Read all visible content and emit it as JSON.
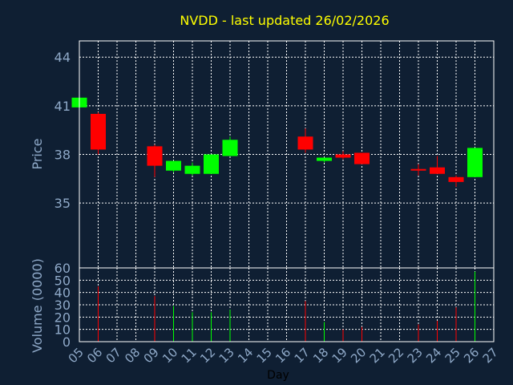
{
  "colors": {
    "background": "#0f1f33",
    "title": "#ffff00",
    "axis_text": "#8fa9c8",
    "grid": "#ffffff",
    "up": "#00ff00",
    "down": "#ff0000"
  },
  "chart_data": [
    {
      "type": "candlestick",
      "title": "NVDD - last updated 26/02/2026",
      "xlabel": "",
      "ylabel": "Price",
      "ylim": [
        31,
        45
      ],
      "yticks": [
        "35",
        "38",
        "41",
        "44"
      ],
      "grid": true,
      "categories": [
        "05",
        "06",
        "07",
        "08",
        "09",
        "10",
        "11",
        "12",
        "13",
        "14",
        "15",
        "16",
        "17",
        "18",
        "19",
        "20",
        "21",
        "22",
        "23",
        "24",
        "25",
        "26",
        "27"
      ],
      "candles": [
        {
          "x": "05",
          "open": 40.9,
          "high": 41.5,
          "low": 40.9,
          "close": 41.5
        },
        {
          "x": "06",
          "open": 40.5,
          "high": 40.6,
          "low": 38.0,
          "close": 38.3
        },
        {
          "x": "09",
          "open": 38.5,
          "high": 38.6,
          "low": 36.6,
          "close": 37.3
        },
        {
          "x": "10",
          "open": 37.0,
          "high": 37.6,
          "low": 36.9,
          "close": 37.6
        },
        {
          "x": "11",
          "open": 36.8,
          "high": 37.5,
          "low": 36.7,
          "close": 37.3
        },
        {
          "x": "12",
          "open": 36.8,
          "high": 38.0,
          "low": 36.8,
          "close": 38.0
        },
        {
          "x": "13",
          "open": 37.9,
          "high": 39.1,
          "low": 37.9,
          "close": 38.9
        },
        {
          "x": "17",
          "open": 39.1,
          "high": 39.6,
          "low": 38.1,
          "close": 38.3
        },
        {
          "x": "18",
          "open": 37.6,
          "high": 37.8,
          "low": 37.5,
          "close": 37.8
        },
        {
          "x": "19",
          "open": 38.0,
          "high": 38.2,
          "low": 37.7,
          "close": 37.8
        },
        {
          "x": "20",
          "open": 38.1,
          "high": 38.1,
          "low": 37.4,
          "close": 37.4
        },
        {
          "x": "23",
          "open": 37.1,
          "high": 37.4,
          "low": 36.7,
          "close": 37.0
        },
        {
          "x": "24",
          "open": 37.2,
          "high": 37.9,
          "low": 36.8,
          "close": 36.8
        },
        {
          "x": "25",
          "open": 36.6,
          "high": 36.7,
          "low": 36.0,
          "close": 36.3
        },
        {
          "x": "26",
          "open": 36.6,
          "high": 38.4,
          "low": 36.6,
          "close": 38.4
        }
      ]
    },
    {
      "type": "bar",
      "title": "",
      "xlabel": "Day",
      "ylabel": "Volume (0000)",
      "ylim": [
        0,
        60
      ],
      "yticks": [
        "0",
        "10",
        "20",
        "30",
        "40",
        "50",
        "60"
      ],
      "grid": true,
      "categories": [
        "05",
        "06",
        "07",
        "08",
        "09",
        "10",
        "11",
        "12",
        "13",
        "14",
        "15",
        "16",
        "17",
        "18",
        "19",
        "20",
        "21",
        "22",
        "23",
        "24",
        "25",
        "26",
        "27"
      ],
      "bars": [
        {
          "x": "06",
          "value": 45,
          "direction": "down"
        },
        {
          "x": "09",
          "value": 37,
          "direction": "down"
        },
        {
          "x": "10",
          "value": 29,
          "direction": "up"
        },
        {
          "x": "11",
          "value": 24,
          "direction": "up"
        },
        {
          "x": "12",
          "value": 24,
          "direction": "up"
        },
        {
          "x": "13",
          "value": 26,
          "direction": "up"
        },
        {
          "x": "17",
          "value": 33,
          "direction": "down"
        },
        {
          "x": "18",
          "value": 16,
          "direction": "up"
        },
        {
          "x": "19",
          "value": 10,
          "direction": "down"
        },
        {
          "x": "20",
          "value": 12,
          "direction": "down"
        },
        {
          "x": "23",
          "value": 14,
          "direction": "down"
        },
        {
          "x": "24",
          "value": 17,
          "direction": "down"
        },
        {
          "x": "25",
          "value": 28,
          "direction": "down"
        },
        {
          "x": "26",
          "value": 57,
          "direction": "up"
        }
      ]
    }
  ]
}
